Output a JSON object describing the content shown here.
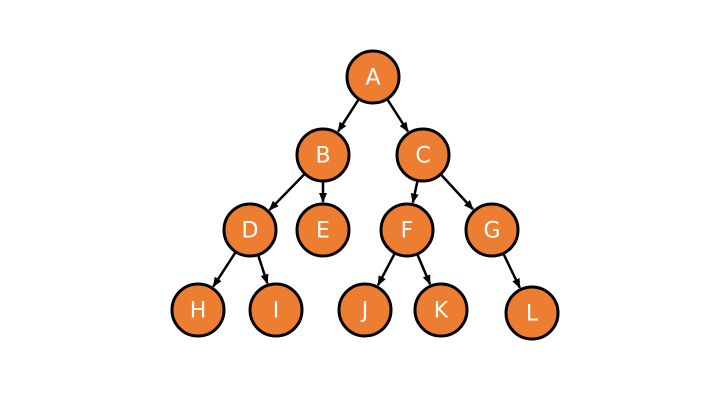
{
  "diagram": {
    "type": "tree",
    "colors": {
      "node_fill": "#ED7D31",
      "node_stroke": "#000000",
      "label_color": "#FFFFFF",
      "edge_color": "#000000"
    },
    "nodes": [
      {
        "id": "A",
        "label": "A"
      },
      {
        "id": "B",
        "label": "B"
      },
      {
        "id": "C",
        "label": "C"
      },
      {
        "id": "D",
        "label": "D"
      },
      {
        "id": "E",
        "label": "E"
      },
      {
        "id": "F",
        "label": "F"
      },
      {
        "id": "G",
        "label": "G"
      },
      {
        "id": "H",
        "label": "H"
      },
      {
        "id": "I",
        "label": "I"
      },
      {
        "id": "J",
        "label": "J"
      },
      {
        "id": "K",
        "label": "K"
      },
      {
        "id": "L",
        "label": "L"
      }
    ],
    "edges": [
      {
        "from": "A",
        "to": "B"
      },
      {
        "from": "A",
        "to": "C"
      },
      {
        "from": "B",
        "to": "D"
      },
      {
        "from": "B",
        "to": "E"
      },
      {
        "from": "C",
        "to": "F"
      },
      {
        "from": "C",
        "to": "G"
      },
      {
        "from": "D",
        "to": "H"
      },
      {
        "from": "D",
        "to": "I"
      },
      {
        "from": "F",
        "to": "J"
      },
      {
        "from": "F",
        "to": "K"
      },
      {
        "from": "G",
        "to": "L"
      }
    ]
  }
}
